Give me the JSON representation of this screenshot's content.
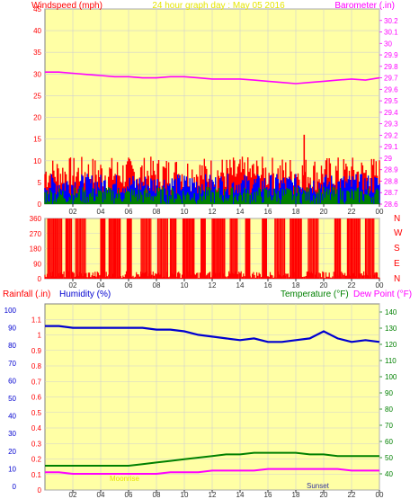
{
  "colors": {
    "background": "#ffffff",
    "plot_bg": "#ffffa5",
    "grid": "#d0d0d0",
    "axis_wind": "#ff0000",
    "axis_baro": "#ff00ff",
    "title": "#e6e600",
    "rain": "#ff0000",
    "humidity": "#0000d0",
    "temperature": "#008000",
    "dewpoint": "#ff00ff",
    "gust": "#ff0000",
    "avg_wind": "#0000ff",
    "min_wind": "#008000"
  },
  "header": {
    "windspeed_label": "Windspeed (mph)",
    "title": "24 hour graph day : May 05 2016",
    "barometer_label": "Barometer (.in)"
  },
  "panel2": {
    "direction_labels": [
      "N",
      "W",
      "S",
      "E",
      "N"
    ]
  },
  "panel3": {
    "rainfall_label": "Rainfall (.in)",
    "humidity_label": "Humidity (%)",
    "temperature_label": "Temperature (°F)",
    "dewpoint_label": "Dew Point (°F)",
    "moonrise_label": "Moonrise",
    "sunset_label": "Sunset"
  },
  "chart_data": [
    {
      "type": "line",
      "x_ticks": [
        "02",
        "04",
        "06",
        "08",
        "10",
        "12",
        "14",
        "16",
        "18",
        "20",
        "22",
        "00"
      ],
      "x_range": [
        0,
        24
      ],
      "yleft": {
        "label": "Windspeed (mph)",
        "ticks": [
          0,
          5,
          10,
          15,
          20,
          25,
          30,
          35,
          40,
          45
        ],
        "range": [
          0,
          45
        ]
      },
      "yright": {
        "label": "Barometer (.in)",
        "ticks": [
          28.6,
          28.7,
          28.8,
          28.9,
          29.0,
          29.1,
          29.2,
          29.3,
          29.4,
          29.5,
          29.6,
          29.7,
          29.8,
          29.9,
          30.0,
          30.1,
          30.2
        ],
        "tick_labels": [
          "28.6",
          "28.7",
          "28.8",
          "28.9",
          "29",
          "29.1",
          "29.2",
          "29.3",
          "29.4",
          "29.5",
          "29.6",
          "29.7",
          "29.8",
          "29.9",
          "30",
          "30.1",
          "30.2"
        ],
        "range": [
          28.6,
          30.3
        ]
      },
      "series": [
        {
          "name": "Barometer (.in)",
          "axis": "right",
          "x": [
            0,
            1,
            2,
            3,
            4,
            5,
            6,
            7,
            8,
            9,
            10,
            11,
            12,
            13,
            14,
            15,
            16,
            17,
            18,
            19,
            20,
            21,
            22,
            23,
            24
          ],
          "values": [
            29.75,
            29.75,
            29.74,
            29.73,
            29.72,
            29.71,
            29.71,
            29.7,
            29.7,
            29.71,
            29.71,
            29.7,
            29.69,
            29.69,
            29.69,
            29.68,
            29.67,
            29.66,
            29.65,
            29.66,
            29.67,
            29.68,
            29.69,
            29.68,
            29.7
          ]
        }
      ],
      "wind_bands": [
        {
          "color": "gust",
          "x": [
            0,
            24
          ],
          "low": 3,
          "high": 11,
          "peak": 16,
          "peak_x": 18.6
        },
        {
          "color": "avg_wind",
          "x": [
            0,
            24
          ],
          "low": 2,
          "high": 7
        },
        {
          "color": "min_wind",
          "x": [
            0,
            24
          ],
          "low": 0,
          "high": 4
        }
      ]
    },
    {
      "type": "bar",
      "x_ticks": [
        "02",
        "04",
        "06",
        "08",
        "10",
        "12",
        "14",
        "16",
        "18",
        "20",
        "22",
        "00"
      ],
      "yleft": {
        "ticks": [
          0,
          90,
          180,
          270,
          360
        ],
        "range": [
          0,
          360
        ]
      },
      "series": [
        {
          "name": "Wind direction",
          "x_segments_full": [
            [
              0.2,
              1.2
            ],
            [
              1.5,
              1.9
            ],
            [
              2.2,
              2.9
            ],
            [
              4.0,
              4.3
            ],
            [
              4.6,
              5.4
            ],
            [
              5.9,
              6.2
            ],
            [
              6.9,
              7.6
            ],
            [
              8.1,
              8.8
            ],
            [
              9.0,
              9.4
            ],
            [
              9.9,
              10.7
            ],
            [
              11.2,
              11.5
            ],
            [
              12.0,
              12.9
            ],
            [
              13.3,
              13.8
            ],
            [
              14.4,
              14.7
            ],
            [
              15.6,
              15.9
            ],
            [
              16.5,
              17.2
            ],
            [
              17.6,
              18.4
            ],
            [
              18.9,
              19.6
            ],
            [
              20.8,
              21.2
            ],
            [
              21.7,
              22.6
            ],
            [
              23.0,
              23.6
            ]
          ]
        }
      ]
    },
    {
      "type": "line",
      "x_ticks": [
        "02",
        "04",
        "06",
        "08",
        "10",
        "12",
        "14",
        "16",
        "18",
        "20",
        "22",
        "00"
      ],
      "yleft_rain": {
        "label": "Rainfall (.in)",
        "ticks": [
          0,
          0.1,
          0.2,
          0.3,
          0.4,
          0.5,
          0.6,
          0.7,
          0.8,
          0.9,
          1,
          1.1
        ],
        "tick_labels": [
          "0",
          "0.1",
          "0.2",
          "0.3",
          "0.4",
          "0.5",
          "0.6",
          "0.7",
          "0.8",
          "0.9",
          "1",
          "1.1"
        ],
        "range": [
          0,
          1.2
        ]
      },
      "yleft_humidity": {
        "label": "Humidity (%)",
        "ticks": [
          0,
          10,
          20,
          30,
          40,
          50,
          60,
          70,
          80,
          90,
          100
        ],
        "range": [
          0,
          100
        ]
      },
      "yright": {
        "label": "Temperature (°F)",
        "ticks": [
          40,
          50,
          60,
          70,
          80,
          90,
          100,
          110,
          120,
          130,
          140
        ],
        "range": [
          30,
          145
        ]
      },
      "series": [
        {
          "name": "Humidity (%)",
          "axis": "humidity",
          "x": [
            0,
            1,
            2,
            3,
            4,
            5,
            6,
            7,
            8,
            9,
            10,
            11,
            12,
            13,
            14,
            15,
            16,
            17,
            18,
            19,
            20,
            21,
            22,
            23,
            24
          ],
          "values": [
            91,
            91,
            90,
            90,
            90,
            90,
            90,
            90,
            89,
            89,
            88,
            86,
            85,
            84,
            83,
            84,
            82,
            82,
            83,
            84,
            88,
            84,
            82,
            83,
            82
          ]
        },
        {
          "name": "Temperature (°F)",
          "axis": "right",
          "x": [
            0,
            1,
            2,
            3,
            4,
            5,
            6,
            7,
            8,
            9,
            10,
            11,
            12,
            13,
            14,
            15,
            16,
            17,
            18,
            19,
            20,
            21,
            22,
            23,
            24
          ],
          "values": [
            45,
            45,
            45,
            45,
            45,
            45,
            45,
            46,
            47,
            48,
            49,
            50,
            51,
            52,
            52,
            53,
            53,
            53,
            53,
            52,
            52,
            51,
            51,
            51,
            51
          ]
        },
        {
          "name": "Dew Point (°F)",
          "axis": "right",
          "x": [
            0,
            1,
            2,
            3,
            4,
            5,
            6,
            7,
            8,
            9,
            10,
            11,
            12,
            13,
            14,
            15,
            16,
            17,
            18,
            19,
            20,
            21,
            22,
            23,
            24
          ],
          "values": [
            41,
            41,
            40,
            40,
            40,
            40,
            40,
            40,
            40,
            41,
            41,
            41,
            42,
            42,
            42,
            42,
            43,
            43,
            43,
            43,
            43,
            43,
            42,
            42,
            42
          ]
        }
      ]
    }
  ]
}
